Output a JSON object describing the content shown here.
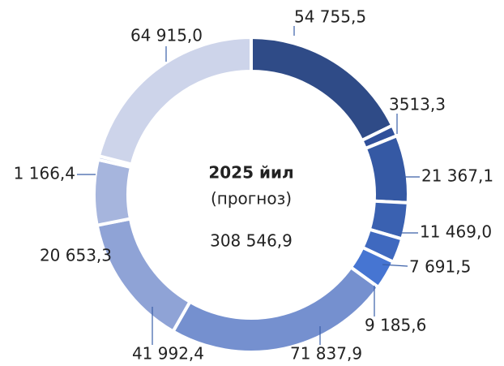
{
  "chart_data": {
    "type": "donut",
    "annotations": [
      "2025 йил",
      "(прогноз)",
      "308 546,9"
    ],
    "categories": [
      null,
      null,
      null,
      null,
      null,
      null,
      null,
      null,
      null,
      null,
      null
    ],
    "values": [
      54755.5,
      3513.3,
      21367.1,
      11469.0,
      7691.5,
      9185.6,
      71837.9,
      41992.4,
      20653.3,
      1166.4,
      64915.0
    ],
    "value_labels": [
      "54 755,5",
      "3513,3",
      "21 367,1",
      "11 469,0",
      "7 691,5",
      "9 185,6",
      "71 837,9",
      "41 992,4",
      "20 653,3",
      "1 166,4",
      "64 915,0"
    ],
    "colors": [
      "#2f4b87",
      "#30509a",
      "#3559a4",
      "#3a61b1",
      "#3f69bf",
      "#4675d2",
      "#7590cf",
      "#8fa3d6",
      "#a6b5dd",
      "#b6c2e3",
      "#cdd4ea"
    ]
  }
}
